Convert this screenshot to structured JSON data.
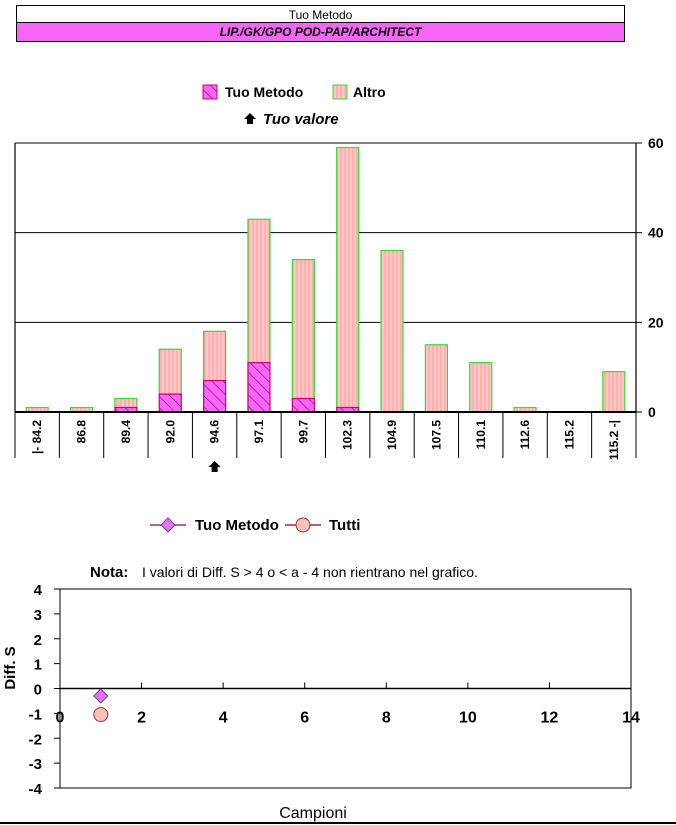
{
  "header": {
    "title": "Tuo Metodo",
    "method": "LIP./GK/GPO POD-PAP/ARCHITECT"
  },
  "colors": {
    "method_band": "#f666f6",
    "method_fill": "#ff66ff",
    "method_stroke": "#cc0066",
    "other_fill": "#ffc0c0",
    "other_stroke": "#33dd33",
    "tutti_fill": "#ffc0b8",
    "tutti_stroke": "#993333",
    "point_method_fill": "#dd77ee",
    "point_method_stroke": "#883399"
  },
  "histogram": {
    "legend_method": "Tuo Metodo",
    "legend_other": "Altro",
    "legend_value": "Tuo valore",
    "marker_index": 4
  },
  "scatter": {
    "legend_method": "Tuo Metodo",
    "legend_all": "Tutti",
    "note_label": "Nota:",
    "note_text": "I valori di Diff. S > 4 o < a - 4 non rientrano nel grafico.",
    "ylabel": "Diff. S",
    "xlabel": "Campioni"
  },
  "chart_data": [
    {
      "type": "bar",
      "stacked": true,
      "categories": [
        "|- 84.2",
        "86.8",
        "89.4",
        "92.0",
        "94.6",
        "97.1",
        "99.7",
        "102.3",
        "104.9",
        "107.5",
        "110.1",
        "112.6",
        "115.2",
        "115.2 -|"
      ],
      "series": [
        {
          "name": "Tuo Metodo",
          "values": [
            0,
            0,
            1,
            4,
            7,
            11,
            3,
            1,
            0,
            0,
            0,
            0,
            0,
            0
          ]
        },
        {
          "name": "Altro",
          "values": [
            1,
            1,
            2,
            10,
            11,
            32,
            31,
            58,
            36,
            15,
            11,
            1,
            0,
            9
          ]
        }
      ],
      "ylim": [
        0,
        60
      ],
      "yticks": [
        0,
        20,
        40,
        60
      ],
      "grid": true,
      "legend": "top"
    },
    {
      "type": "scatter",
      "series": [
        {
          "name": "Tuo Metodo",
          "points": [
            [
              1,
              -0.3
            ]
          ]
        },
        {
          "name": "Tutti",
          "points": [
            [
              1,
              -1.05
            ]
          ]
        }
      ],
      "xlim": [
        0,
        14
      ],
      "ylim": [
        -4,
        4
      ],
      "xticks": [
        0,
        2,
        4,
        6,
        8,
        10,
        12,
        14
      ],
      "yticks": [
        4,
        3,
        2,
        1,
        0,
        -1,
        -2,
        -3,
        -4
      ],
      "xlabel": "Campioni",
      "ylabel": "Diff. S",
      "legend": "top"
    }
  ]
}
